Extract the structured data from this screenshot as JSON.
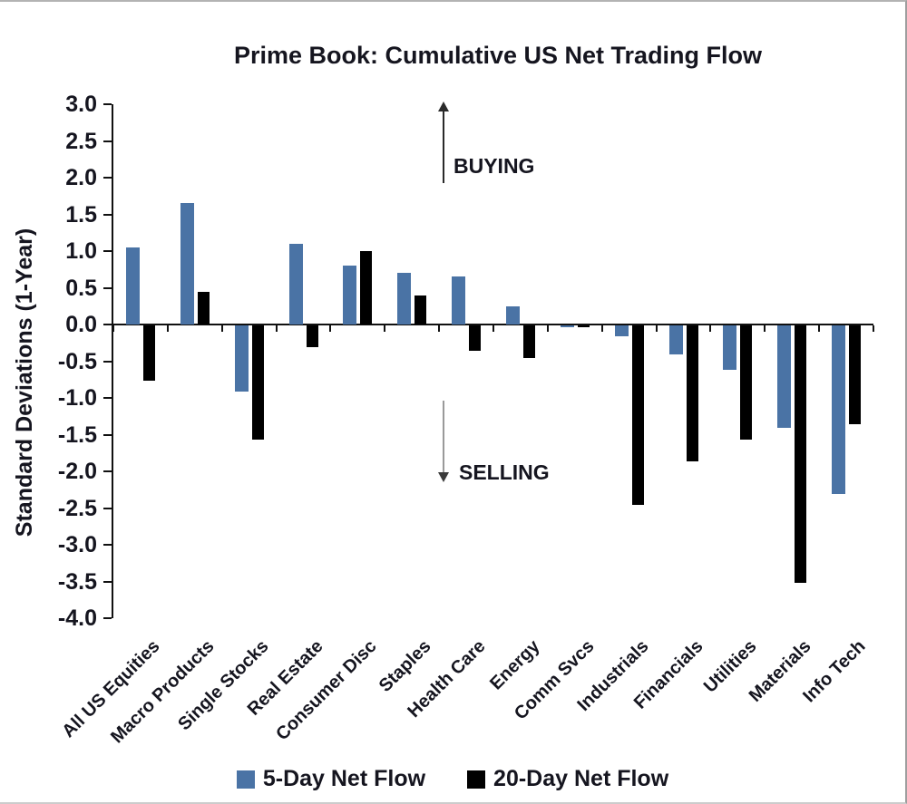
{
  "title": "Prime Book: Cumulative US Net Trading Flow",
  "ylabel": "Standard Deviations (1-Year)",
  "annotations": {
    "buying": "BUYING",
    "selling": "SELLING"
  },
  "colors": {
    "five_day": "#4a73a5",
    "twenty_day": "#000000",
    "axis": "#111111",
    "text": "#15151f"
  },
  "chart_data": {
    "type": "bar",
    "title": "Prime Book: Cumulative US Net Trading Flow",
    "xlabel": "",
    "ylabel": "Standard Deviations (1-Year)",
    "ylim": [
      -4.0,
      3.0
    ],
    "ytick_step": 0.5,
    "grid": false,
    "legend_position": "bottom",
    "categories": [
      "All US Equities",
      "Macro Products",
      "Single Stocks",
      "Real Estate",
      "Consumer Disc",
      "Staples",
      "Health Care",
      "Energy",
      "Comm Svcs",
      "Industrials",
      "Financials",
      "Utilities",
      "Materials",
      "Info Tech"
    ],
    "series": [
      {
        "name": "5-Day Net Flow",
        "color": "#4a73a5",
        "values": [
          1.05,
          1.65,
          -0.9,
          1.1,
          0.8,
          0.7,
          0.65,
          0.25,
          -0.03,
          -0.15,
          -0.4,
          -0.6,
          -1.4,
          -2.3
        ]
      },
      {
        "name": "20-Day Net Flow",
        "color": "#000000",
        "values": [
          -0.75,
          0.45,
          -1.55,
          -0.3,
          1.0,
          0.4,
          -0.35,
          -0.45,
          -0.03,
          -2.45,
          -1.85,
          -1.55,
          -3.5,
          -1.35
        ]
      }
    ]
  }
}
